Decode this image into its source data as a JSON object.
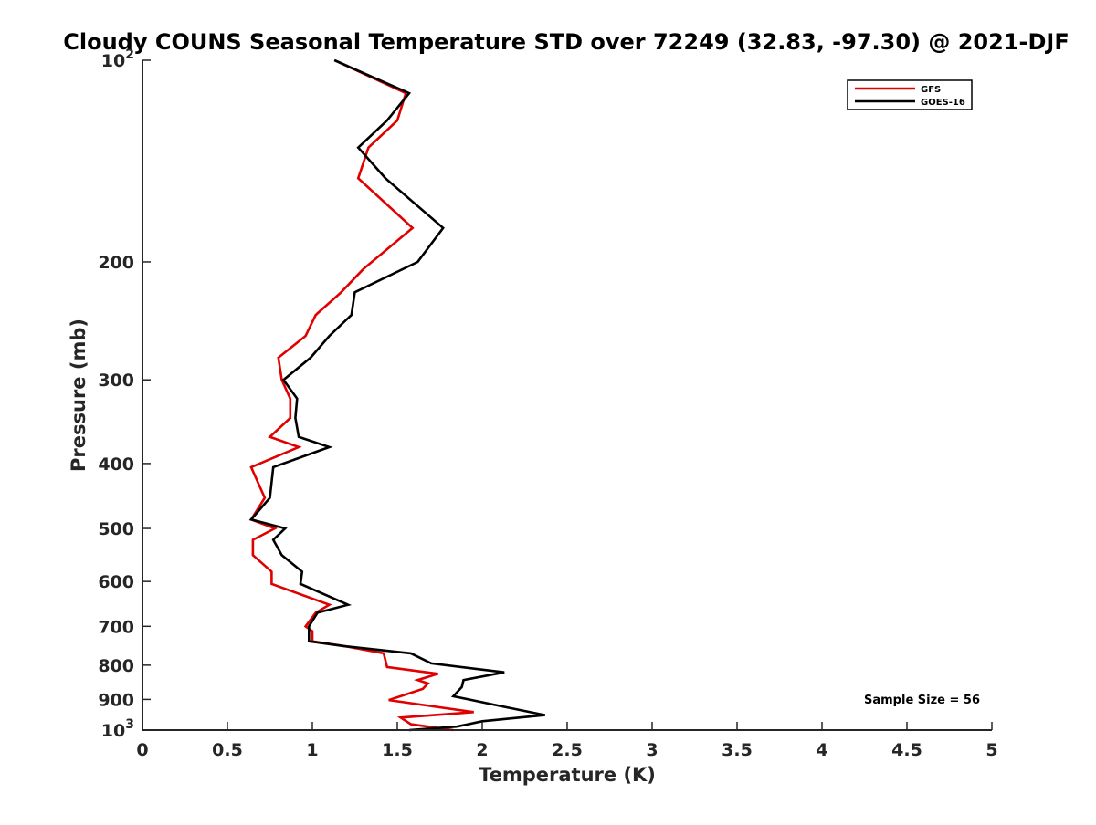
{
  "chart_data": {
    "type": "line",
    "title": "Cloudy COUNS Seasonal Temperature STD over 72249 (32.83, -97.30) @ 2021-DJF",
    "xlabel": "Temperature (K)",
    "ylabel": "Pressure (mb)",
    "xlim": [
      0,
      5
    ],
    "ylim": [
      100,
      1000
    ],
    "y_scale": "log",
    "y_reversed": true,
    "x_ticks": [
      0,
      0.5,
      1,
      1.5,
      2,
      2.5,
      3,
      3.5,
      4,
      4.5,
      5
    ],
    "x_tick_labels": [
      "0",
      "0.5",
      "1",
      "1.5",
      "2",
      "2.5",
      "3",
      "3.5",
      "4",
      "4.5",
      "5"
    ],
    "y_ticks": [
      {
        "value": 100,
        "label": "10",
        "sup": "2"
      },
      {
        "value": 200,
        "label": "200",
        "sup": ""
      },
      {
        "value": 300,
        "label": "300",
        "sup": ""
      },
      {
        "value": 400,
        "label": "400",
        "sup": ""
      },
      {
        "value": 500,
        "label": "500",
        "sup": ""
      },
      {
        "value": 600,
        "label": "600",
        "sup": ""
      },
      {
        "value": 700,
        "label": "700",
        "sup": ""
      },
      {
        "value": 800,
        "label": "800",
        "sup": ""
      },
      {
        "value": 900,
        "label": "900",
        "sup": ""
      },
      {
        "value": 1000,
        "label": "10",
        "sup": "3"
      }
    ],
    "legend_position": "top-right",
    "annotation": "Sample Size = 56",
    "series": [
      {
        "name": "GFS",
        "color": "#e00000",
        "points": [
          [
            1.13,
            100
          ],
          [
            1.55,
            112
          ],
          [
            1.5,
            123
          ],
          [
            1.33,
            135
          ],
          [
            1.27,
            150
          ],
          [
            1.59,
            178
          ],
          [
            1.3,
            205
          ],
          [
            1.17,
            222
          ],
          [
            1.02,
            240
          ],
          [
            0.96,
            258
          ],
          [
            0.8,
            278
          ],
          [
            0.82,
            300
          ],
          [
            0.87,
            320
          ],
          [
            0.87,
            342
          ],
          [
            0.75,
            365
          ],
          [
            0.92,
            378
          ],
          [
            0.64,
            405
          ],
          [
            0.72,
            450
          ],
          [
            0.64,
            485
          ],
          [
            0.78,
            500
          ],
          [
            0.65,
            520
          ],
          [
            0.65,
            548
          ],
          [
            0.76,
            580
          ],
          [
            0.76,
            605
          ],
          [
            1.1,
            650
          ],
          [
            1.02,
            668
          ],
          [
            0.96,
            700
          ],
          [
            1.0,
            712
          ],
          [
            1.0,
            737
          ],
          [
            1.2,
            750
          ],
          [
            1.42,
            768
          ],
          [
            1.44,
            805
          ],
          [
            1.74,
            824
          ],
          [
            1.62,
            842
          ],
          [
            1.68,
            852
          ],
          [
            1.65,
            868
          ],
          [
            1.45,
            902
          ],
          [
            1.95,
            940
          ],
          [
            1.52,
            958
          ],
          [
            1.58,
            980
          ],
          [
            1.83,
            1000
          ]
        ]
      },
      {
        "name": "GOES-16",
        "color": "#000000",
        "points": [
          [
            1.13,
            100
          ],
          [
            1.57,
            112
          ],
          [
            1.44,
            123
          ],
          [
            1.27,
            135
          ],
          [
            1.43,
            150
          ],
          [
            1.77,
            178
          ],
          [
            1.62,
            200
          ],
          [
            1.25,
            222
          ],
          [
            1.23,
            240
          ],
          [
            1.1,
            258
          ],
          [
            0.99,
            278
          ],
          [
            0.83,
            300
          ],
          [
            0.91,
            320
          ],
          [
            0.9,
            342
          ],
          [
            0.92,
            365
          ],
          [
            1.1,
            378
          ],
          [
            0.77,
            405
          ],
          [
            0.75,
            450
          ],
          [
            0.64,
            485
          ],
          [
            0.84,
            500
          ],
          [
            0.77,
            520
          ],
          [
            0.82,
            548
          ],
          [
            0.94,
            580
          ],
          [
            0.93,
            605
          ],
          [
            1.21,
            650
          ],
          [
            1.03,
            668
          ],
          [
            0.98,
            700
          ],
          [
            0.98,
            737
          ],
          [
            1.2,
            750
          ],
          [
            1.58,
            768
          ],
          [
            1.7,
            795
          ],
          [
            2.13,
            820
          ],
          [
            1.89,
            842
          ],
          [
            1.88,
            862
          ],
          [
            1.83,
            890
          ],
          [
            2.1,
            920
          ],
          [
            2.37,
            950
          ],
          [
            2.0,
            970
          ],
          [
            1.85,
            988
          ],
          [
            1.57,
            1000
          ]
        ]
      }
    ]
  }
}
